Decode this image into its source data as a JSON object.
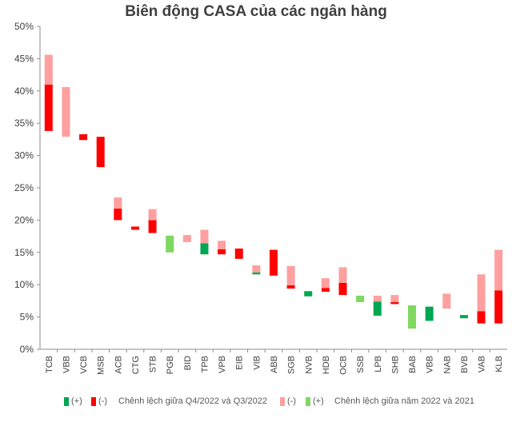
{
  "chart_data": {
    "type": "bar",
    "title": "Biên động CASA của các ngân hàng",
    "xlabel": "",
    "ylabel": "",
    "ylim": [
      0,
      50
    ],
    "yticks": [
      "0%",
      "5%",
      "10%",
      "15%",
      "20%",
      "25%",
      "30%",
      "35%",
      "40%",
      "45%",
      "50%"
    ],
    "categories": [
      "TCB",
      "VBB",
      "VCB",
      "MSB",
      "ACB",
      "CTG",
      "STB",
      "PGB",
      "BID",
      "TPB",
      "VPB",
      "EIB",
      "VIB",
      "ABB",
      "SGB",
      "NVB",
      "HDB",
      "OCB",
      "SSB",
      "LPB",
      "SHB",
      "BAB",
      "VBB",
      "NAB",
      "BVB",
      "VAB",
      "KLB"
    ],
    "series": [
      {
        "name": "Chênh lệch giữa Q4/2022 và Q3/2022",
        "ranges": [
          [
            33.8,
            41.0
          ],
          null,
          [
            32.4,
            33.3
          ],
          [
            28.2,
            32.9
          ],
          [
            20.0,
            21.8
          ],
          [
            18.5,
            19.0
          ],
          [
            18.0,
            20.0
          ],
          null,
          null,
          [
            14.7,
            16.4
          ],
          [
            14.7,
            15.5
          ],
          [
            14.0,
            15.6
          ],
          [
            11.6,
            11.9
          ],
          [
            11.4,
            15.4
          ],
          [
            9.4,
            9.9
          ],
          [
            8.2,
            9.0
          ],
          [
            8.9,
            9.5
          ],
          [
            8.4,
            10.3
          ],
          null,
          [
            5.2,
            7.4
          ],
          [
            7.0,
            7.3
          ],
          null,
          [
            4.4,
            6.6
          ],
          null,
          [
            4.8,
            5.3
          ],
          [
            4.0,
            5.9
          ],
          [
            4.0,
            9.1
          ]
        ],
        "colors": [
          "#ff0000",
          "#ff0000",
          "#ff0000",
          "#ff0000",
          "#ff0000",
          "#ff0000",
          "#ff0000",
          "#ff0000",
          "#ff0000",
          "#00a651",
          "#ff0000",
          "#ff0000",
          "#00a651",
          "#ff0000",
          "#ff0000",
          "#00a651",
          "#ff0000",
          "#ff0000",
          "#ff0000",
          "#00a651",
          "#ff0000",
          "#ff0000",
          "#00a651",
          "#ff0000",
          "#00a651",
          "#ff0000",
          "#ff0000"
        ]
      },
      {
        "name": "Chênh lệch giữa năm 2022 và 2021",
        "ranges": [
          [
            41.0,
            45.6
          ],
          [
            32.9,
            40.6
          ],
          null,
          null,
          [
            21.8,
            23.5
          ],
          null,
          [
            20.0,
            21.7
          ],
          [
            15.0,
            17.6
          ],
          [
            16.6,
            17.7
          ],
          [
            16.4,
            18.5
          ],
          [
            15.5,
            16.8
          ],
          null,
          [
            11.9,
            13.0
          ],
          null,
          [
            9.9,
            12.9
          ],
          null,
          [
            9.5,
            11.0
          ],
          [
            10.3,
            12.7
          ],
          [
            7.3,
            8.3
          ],
          [
            7.4,
            8.3
          ],
          [
            7.3,
            8.4
          ],
          [
            3.2,
            6.8
          ],
          null,
          [
            6.3,
            8.6
          ],
          null,
          [
            5.9,
            11.6
          ],
          [
            9.1,
            15.4
          ]
        ],
        "colors": [
          "#ff9f9f",
          "#ff9f9f",
          "#ff9f9f",
          "#ff9f9f",
          "#ff9f9f",
          "#ff9f9f",
          "#ff9f9f",
          "#7fd85f",
          "#ff9f9f",
          "#ff9f9f",
          "#ff9f9f",
          "#ff9f9f",
          "#ff9f9f",
          "#ff9f9f",
          "#ff9f9f",
          "#ff9f9f",
          "#ff9f9f",
          "#ff9f9f",
          "#7fd85f",
          "#ff9f9f",
          "#ff9f9f",
          "#7fd85f",
          "#ff9f9f",
          "#ff9f9f",
          "#ff9f9f",
          "#ff9f9f",
          "#ff9f9f"
        ]
      }
    ],
    "legend_position": "bottom",
    "grid": false
  },
  "legend": {
    "q4_plus": "(+)",
    "q4_minus": "(-)",
    "q4_label": "Chênh lệch giữa Q4/2022 và Q3/2022",
    "year_minus": "(-)",
    "year_plus": "(+)",
    "year_label": "Chênh lệch giữa năm 2022 và 2021"
  },
  "colors": {
    "q4_plus": "#00a651",
    "q4_minus": "#ff0000",
    "year_minus": "#ff9f9f",
    "year_plus": "#7fd85f",
    "axis": "#8c8c8c",
    "text": "#404040"
  }
}
